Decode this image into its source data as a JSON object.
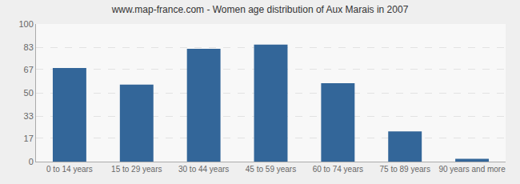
{
  "chart_data": {
    "type": "bar",
    "title": "www.map-france.com - Women age distribution of Aux Marais in 2007",
    "categories": [
      "0 to 14 years",
      "15 to 29 years",
      "30 to 44 years",
      "45 to 59 years",
      "60 to 74 years",
      "75 to 89 years",
      "90 years and more"
    ],
    "values": [
      68,
      56,
      82,
      85,
      57,
      22,
      2
    ],
    "color": "#336699",
    "ylim": [
      0,
      100
    ],
    "yticks": [
      0,
      17,
      33,
      50,
      67,
      83,
      100
    ],
    "grid": true
  }
}
